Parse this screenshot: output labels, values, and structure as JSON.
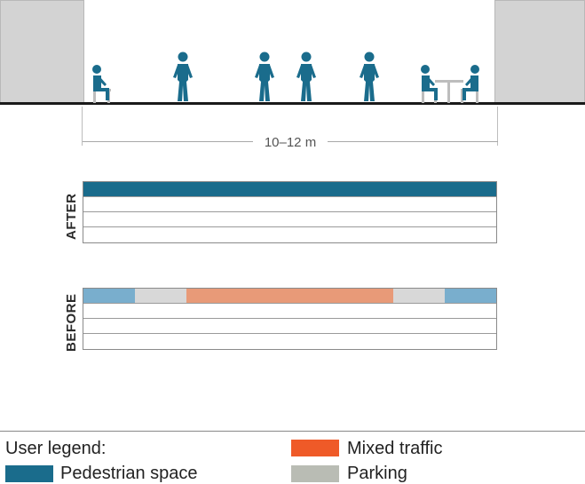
{
  "dimension": {
    "label": "10–12 m"
  },
  "strips": {
    "after": {
      "label": "AFTER",
      "top_band": [
        {
          "use": "pedestrian",
          "share": 1.0
        }
      ]
    },
    "before": {
      "label": "BEFORE",
      "top_band": [
        {
          "use": "pedestrian",
          "share": 0.125
        },
        {
          "use": "parking",
          "share": 0.125
        },
        {
          "use": "mixed",
          "share": 0.5
        },
        {
          "use": "parking",
          "share": 0.125
        },
        {
          "use": "pedestrian",
          "share": 0.125
        }
      ]
    }
  },
  "band_colors": {
    "pedestrian_after": "#1a6c8c",
    "pedestrian_before": "#79aecd",
    "parking": "#d8d8d8",
    "mixed": "#e89a78"
  },
  "legend": {
    "title": "User legend:",
    "items": [
      {
        "label": "Pedestrian space",
        "color": "#1a6c8c"
      },
      {
        "label": "Mixed traffic",
        "color": "#ef5a28"
      },
      {
        "label": "Parking",
        "color": "#b9bcb4"
      }
    ]
  },
  "colors": {
    "figure": "#1a6c8c",
    "chair": "#bdbdbd",
    "building": "#d3d3d3"
  }
}
